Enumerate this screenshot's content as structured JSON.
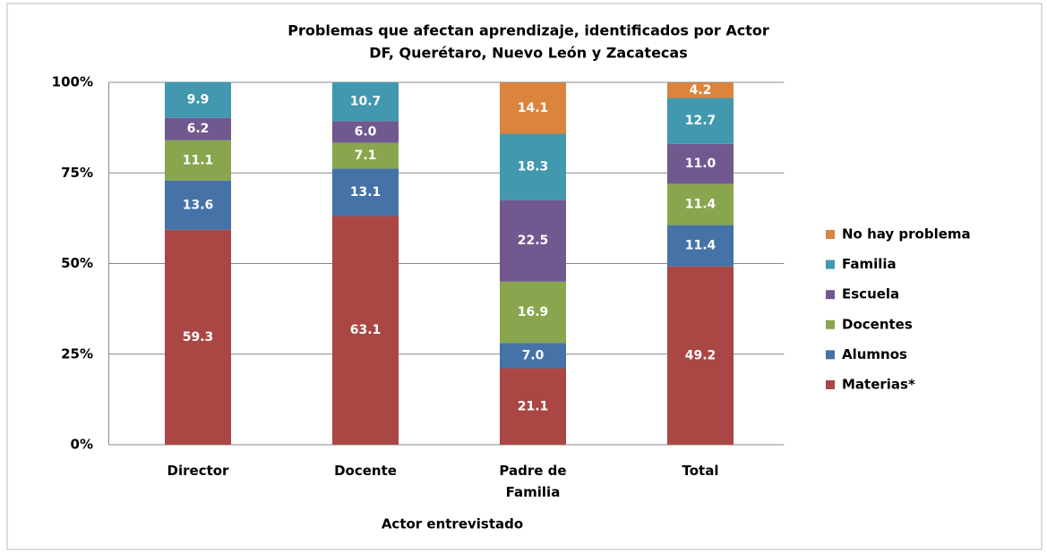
{
  "chart_data": {
    "type": "stacked_bar",
    "title": "Problemas que afectan aprendizaje, identificados por Actor",
    "subtitle": "DF, Querétaro,  Nuevo León y Zacatecas",
    "x_label": "Actor entrevistado",
    "categories": [
      "Director",
      "Docente",
      "Padre de Familia",
      "Total"
    ],
    "series": [
      {
        "name": "Materias*",
        "color": "#AA4643",
        "values": [
          59.3,
          63.1,
          21.1,
          49.2
        ]
      },
      {
        "name": "Alumnos",
        "color": "#4572A7",
        "values": [
          13.6,
          13.1,
          7.0,
          11.4
        ],
        "value_labels": [
          "13.6",
          "13.1",
          "7.0",
          "11.4"
        ]
      },
      {
        "name": "Docentes",
        "color": "#89A54E",
        "values": [
          11.1,
          7.1,
          16.9,
          11.4
        ]
      },
      {
        "name": "Escuela",
        "color": "#71588F",
        "values": [
          6.2,
          6.0,
          22.5,
          11.0
        ],
        "value_labels": [
          "6.2",
          "6.0",
          "22.5",
          "11.0"
        ]
      },
      {
        "name": "Familia",
        "color": "#4198AF",
        "values": [
          9.9,
          10.7,
          18.3,
          12.7
        ]
      },
      {
        "name": "No hay problema",
        "color": "#DB843D",
        "values": [
          0,
          0,
          14.1,
          4.2
        ]
      }
    ],
    "ylim": [
      0,
      100
    ],
    "yticks": [
      {
        "value": 0,
        "label": "0%"
      },
      {
        "value": 25,
        "label": "25%"
      },
      {
        "value": 50,
        "label": "50%"
      },
      {
        "value": 75,
        "label": "75%"
      },
      {
        "value": 100,
        "label": "100%"
      }
    ],
    "grid": true,
    "legend": "right"
  }
}
